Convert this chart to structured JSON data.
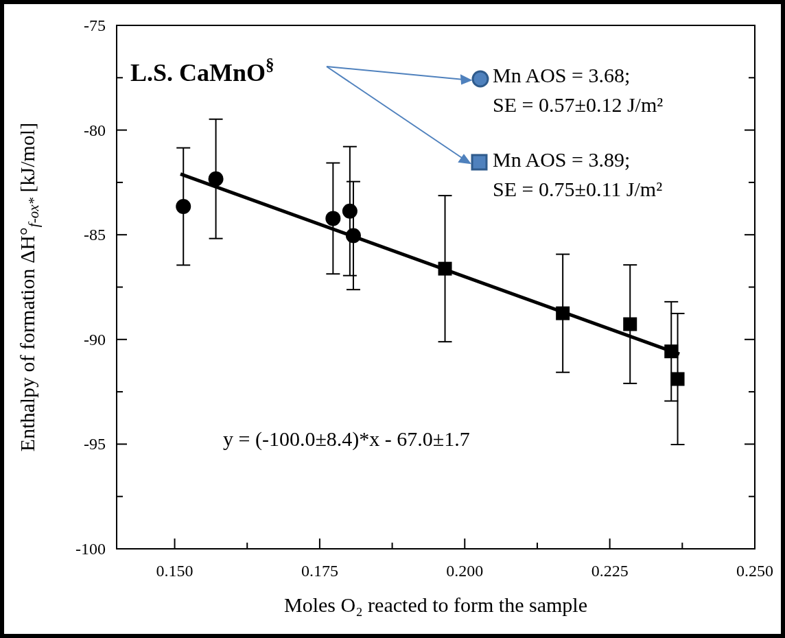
{
  "chart_data": {
    "type": "scatter",
    "xlabel": "Moles O₂ reacted to form the sample",
    "ylabel": "Enthalpy of formation ΔH°$_{f-ox*}$ [kJ/mol]",
    "xlim": [
      0.14,
      0.25
    ],
    "xticks": [
      {
        "value": 0.15,
        "label": "0.150"
      },
      {
        "value": 0.1625,
        "label": null
      },
      {
        "value": 0.175,
        "label": "0.175"
      },
      {
        "value": 0.1875,
        "label": null
      },
      {
        "value": 0.2,
        "label": "0.200"
      },
      {
        "value": 0.2125,
        "label": null
      },
      {
        "value": 0.225,
        "label": "0.225"
      },
      {
        "value": 0.2375,
        "label": null
      },
      {
        "value": 0.25,
        "label": "0.250"
      }
    ],
    "ylim": [
      -100,
      -75
    ],
    "yticks": [
      -75,
      {
        "value": -77.5,
        "label": null
      },
      -80,
      {
        "value": -82.5,
        "label": null
      },
      -85,
      {
        "value": -87.5,
        "label": null
      },
      -90,
      {
        "value": -92.5,
        "label": null
      },
      -95,
      {
        "value": -97.5,
        "label": null
      },
      -100
    ],
    "grid": false,
    "series": [
      {
        "marker": "circle",
        "color": "#000000",
        "x": [
          0.1515,
          0.1571,
          0.1773,
          0.1802,
          0.1808
        ],
        "values": [
          -83.65,
          -82.33,
          -84.22,
          -83.87,
          -85.04
        ],
        "errors": [
          2.8,
          2.85,
          2.65,
          3.08,
          2.58
        ]
      },
      {
        "marker": "square",
        "color": "#000000",
        "x": [
          0.1966,
          0.2169,
          0.2285,
          0.2356,
          0.2367
        ],
        "values": [
          -86.62,
          -88.75,
          -89.27,
          -90.57,
          -91.89
        ],
        "errors": [
          3.49,
          2.82,
          2.83,
          2.37,
          3.13
        ]
      },
      {
        "type": "line",
        "line_style": "solid",
        "color": "#000000",
        "x": [
          0.151,
          0.237
        ],
        "values": [
          -82.1,
          -90.7
        ]
      }
    ],
    "annotations": [
      "L.S. CaMnO$^{§}$",
      "Mn AOS = 3.68;\nSE = 0.57±0.12 J/m²",
      "Mn AOS = 3.89;\nSE = 0.75±0.11 J/m²",
      "y = (-100.0±8.4)*x - 67.0±1.7"
    ]
  }
}
